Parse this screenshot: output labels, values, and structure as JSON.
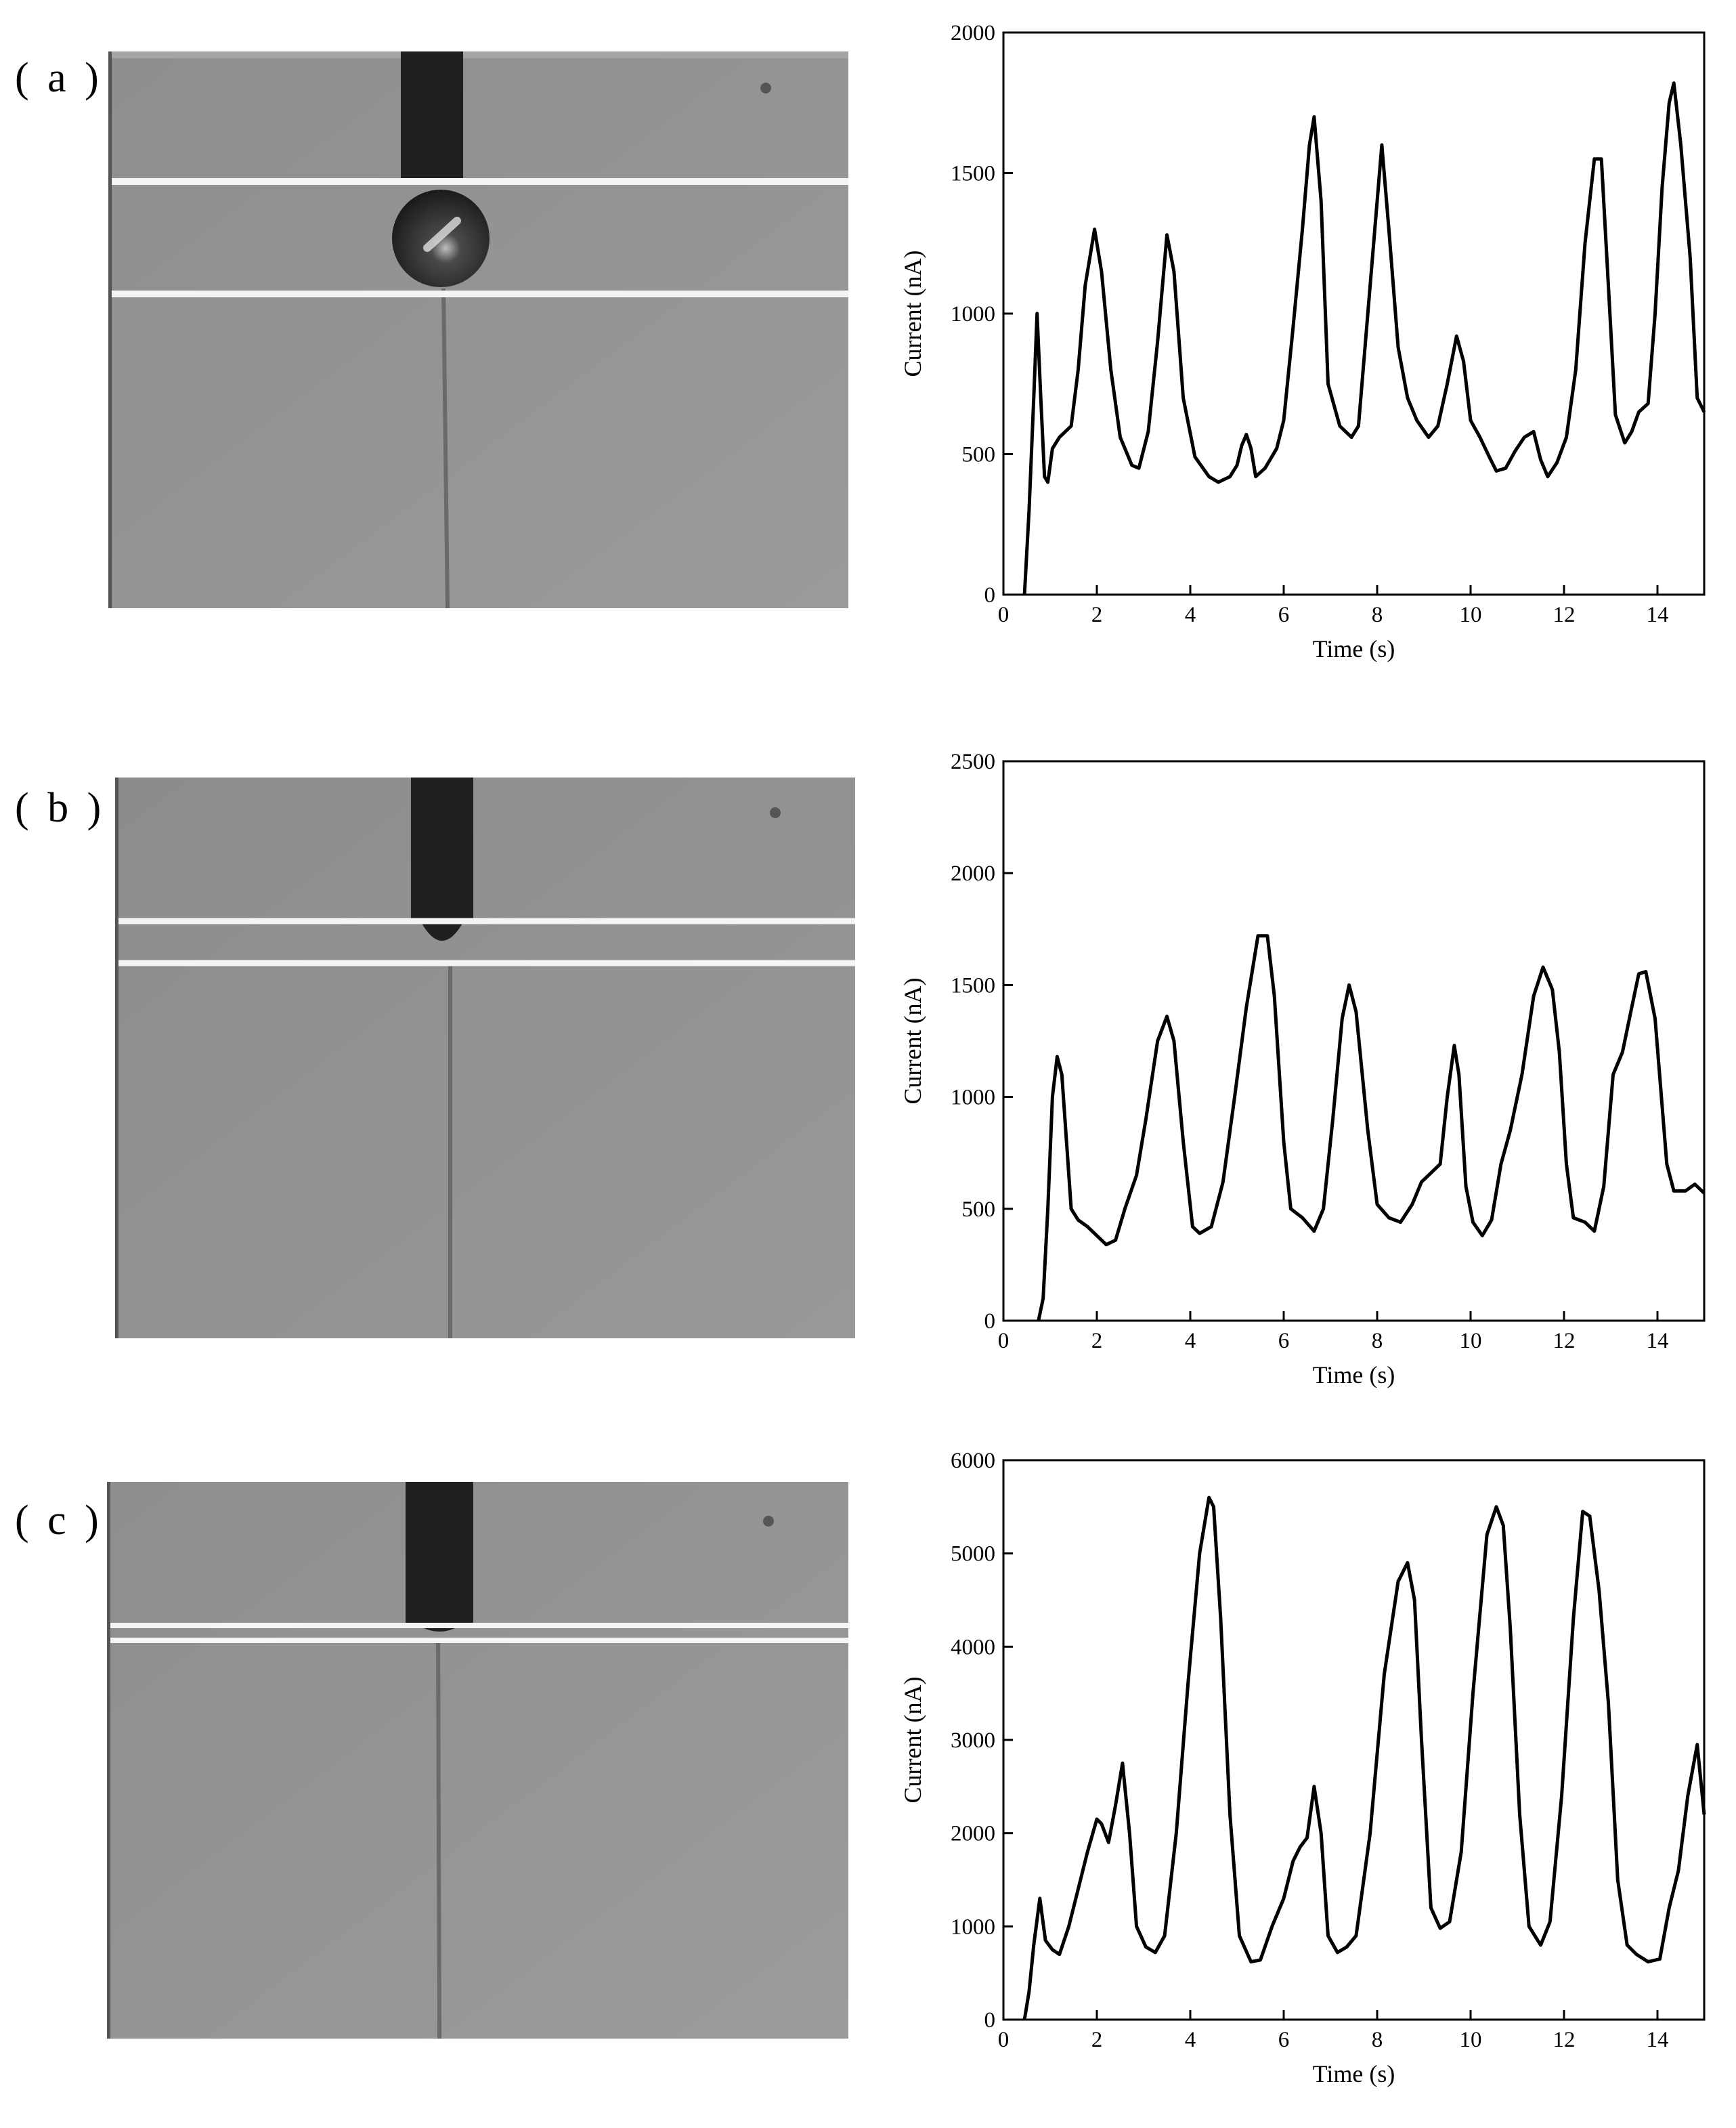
{
  "panels": [
    {
      "label": "( a )"
    },
    {
      "label": "( b )"
    },
    {
      "label": "( c )"
    }
  ],
  "chart_data": [
    {
      "type": "line",
      "title": "",
      "xlabel": "Time (s)",
      "ylabel": "Current (nA)",
      "xlim": [
        0,
        15
      ],
      "ylim": [
        0,
        2000
      ],
      "xticks": [
        0,
        2,
        4,
        6,
        8,
        10,
        12,
        14
      ],
      "yticks": [
        0,
        500,
        1000,
        1500,
        2000
      ],
      "grid": false,
      "series": [
        {
          "x": [
            0.45,
            0.55,
            0.65,
            0.72,
            0.8,
            0.88,
            0.95,
            1.05,
            1.2,
            1.45,
            1.6,
            1.75,
            1.95,
            2.1,
            2.3,
            2.5,
            2.75,
            2.9,
            3.1,
            3.3,
            3.5,
            3.65,
            3.85,
            4.1,
            4.4,
            4.6,
            4.85,
            5.0,
            5.1,
            5.2,
            5.3,
            5.4,
            5.6,
            5.85,
            6.0,
            6.2,
            6.4,
            6.55,
            6.65,
            6.8,
            6.95,
            7.2,
            7.45,
            7.6,
            7.8,
            8.0,
            8.1,
            8.25,
            8.45,
            8.65,
            8.85,
            9.1,
            9.3,
            9.5,
            9.7,
            9.85,
            10.0,
            10.2,
            10.4,
            10.55,
            10.75,
            10.95,
            11.15,
            11.35,
            11.5,
            11.65,
            11.85,
            12.05,
            12.25,
            12.45,
            12.65,
            12.8,
            12.95,
            13.1,
            13.3,
            13.45,
            13.6,
            13.8,
            13.95,
            14.1,
            14.25,
            14.35,
            14.5,
            14.7,
            14.85,
            15.0
          ],
          "values": [
            0,
            300,
            700,
            1000,
            700,
            420,
            400,
            520,
            560,
            600,
            800,
            1100,
            1300,
            1150,
            800,
            560,
            460,
            450,
            580,
            900,
            1280,
            1150,
            700,
            490,
            420,
            400,
            420,
            460,
            530,
            570,
            520,
            420,
            450,
            520,
            620,
            950,
            1300,
            1600,
            1700,
            1400,
            750,
            600,
            560,
            600,
            1000,
            1400,
            1600,
            1300,
            880,
            700,
            620,
            560,
            600,
            750,
            920,
            830,
            620,
            560,
            490,
            440,
            450,
            510,
            560,
            580,
            480,
            420,
            470,
            560,
            800,
            1250,
            1550,
            1550,
            1100,
            640,
            540,
            580,
            650,
            680,
            1000,
            1450,
            1750,
            1820,
            1600,
            1200,
            700,
            650
          ]
        }
      ]
    },
    {
      "type": "line",
      "title": "",
      "xlabel": "Time (s)",
      "ylabel": "Current (nA)",
      "xlim": [
        0,
        15
      ],
      "ylim": [
        0,
        2500
      ],
      "xticks": [
        0,
        2,
        4,
        6,
        8,
        10,
        12,
        14
      ],
      "yticks": [
        0,
        500,
        1000,
        1500,
        2000,
        2500
      ],
      "grid": false,
      "series": [
        {
          "x": [
            0.75,
            0.85,
            0.95,
            1.05,
            1.15,
            1.25,
            1.45,
            1.6,
            1.8,
            2.0,
            2.2,
            2.4,
            2.6,
            2.85,
            3.05,
            3.3,
            3.5,
            3.65,
            3.85,
            4.05,
            4.2,
            4.45,
            4.7,
            4.95,
            5.2,
            5.45,
            5.65,
            5.8,
            6.0,
            6.15,
            6.4,
            6.65,
            6.85,
            7.05,
            7.25,
            7.4,
            7.55,
            7.8,
            8.0,
            8.25,
            8.5,
            8.75,
            8.95,
            9.15,
            9.35,
            9.5,
            9.65,
            9.75,
            9.9,
            10.05,
            10.25,
            10.45,
            10.65,
            10.85,
            11.1,
            11.35,
            11.55,
            11.75,
            11.9,
            12.05,
            12.2,
            12.45,
            12.65,
            12.85,
            13.05,
            13.25,
            13.45,
            13.6,
            13.75,
            13.95,
            14.2,
            14.35,
            14.6,
            14.8,
            15.0
          ],
          "values": [
            0,
            100,
            500,
            1000,
            1180,
            1100,
            500,
            450,
            420,
            380,
            340,
            360,
            500,
            650,
            900,
            1250,
            1360,
            1250,
            800,
            420,
            390,
            420,
            620,
            1000,
            1400,
            1720,
            1720,
            1450,
            800,
            500,
            460,
            400,
            500,
            900,
            1350,
            1500,
            1380,
            850,
            520,
            460,
            440,
            520,
            620,
            660,
            700,
            1000,
            1230,
            1100,
            600,
            440,
            380,
            450,
            700,
            850,
            1100,
            1450,
            1580,
            1480,
            1200,
            700,
            460,
            440,
            400,
            600,
            1100,
            1200,
            1400,
            1550,
            1560,
            1350,
            700,
            580,
            580,
            610,
            570
          ]
        }
      ]
    },
    {
      "type": "line",
      "title": "",
      "xlabel": "Time (s)",
      "ylabel": "Current (nA)",
      "xlim": [
        0,
        15
      ],
      "ylim": [
        0,
        6000
      ],
      "xticks": [
        0,
        2,
        4,
        6,
        8,
        10,
        12,
        14
      ],
      "yticks": [
        0,
        1000,
        2000,
        3000,
        4000,
        5000,
        6000
      ],
      "grid": false,
      "series": [
        {
          "x": [
            0.45,
            0.55,
            0.65,
            0.78,
            0.9,
            1.05,
            1.2,
            1.4,
            1.6,
            1.8,
            2.0,
            2.1,
            2.25,
            2.4,
            2.55,
            2.7,
            2.85,
            3.05,
            3.25,
            3.45,
            3.7,
            3.95,
            4.2,
            4.4,
            4.5,
            4.65,
            4.85,
            5.05,
            5.3,
            5.5,
            5.75,
            6.0,
            6.2,
            6.35,
            6.5,
            6.65,
            6.8,
            6.95,
            7.15,
            7.35,
            7.55,
            7.85,
            8.15,
            8.45,
            8.65,
            8.8,
            8.95,
            9.15,
            9.35,
            9.55,
            9.8,
            10.05,
            10.35,
            10.55,
            10.7,
            10.85,
            11.05,
            11.25,
            11.5,
            11.7,
            11.95,
            12.2,
            12.4,
            12.55,
            12.75,
            12.95,
            13.15,
            13.35,
            13.55,
            13.8,
            14.05,
            14.25,
            14.45,
            14.65,
            14.85,
            15.0
          ],
          "values": [
            0,
            300,
            800,
            1300,
            850,
            750,
            700,
            1000,
            1400,
            1800,
            2150,
            2100,
            1900,
            2300,
            2750,
            2000,
            1000,
            780,
            720,
            900,
            2000,
            3600,
            5000,
            5600,
            5500,
            4300,
            2200,
            900,
            620,
            640,
            1000,
            1300,
            1700,
            1850,
            1950,
            2500,
            2000,
            900,
            720,
            780,
            900,
            2000,
            3700,
            4700,
            4900,
            4500,
            3000,
            1200,
            980,
            1050,
            1800,
            3500,
            5200,
            5500,
            5300,
            4200,
            2200,
            1000,
            800,
            1050,
            2400,
            4300,
            5450,
            5400,
            4600,
            3400,
            1500,
            800,
            700,
            620,
            650,
            1200,
            1600,
            2400,
            2950,
            2200
          ]
        }
      ]
    }
  ]
}
